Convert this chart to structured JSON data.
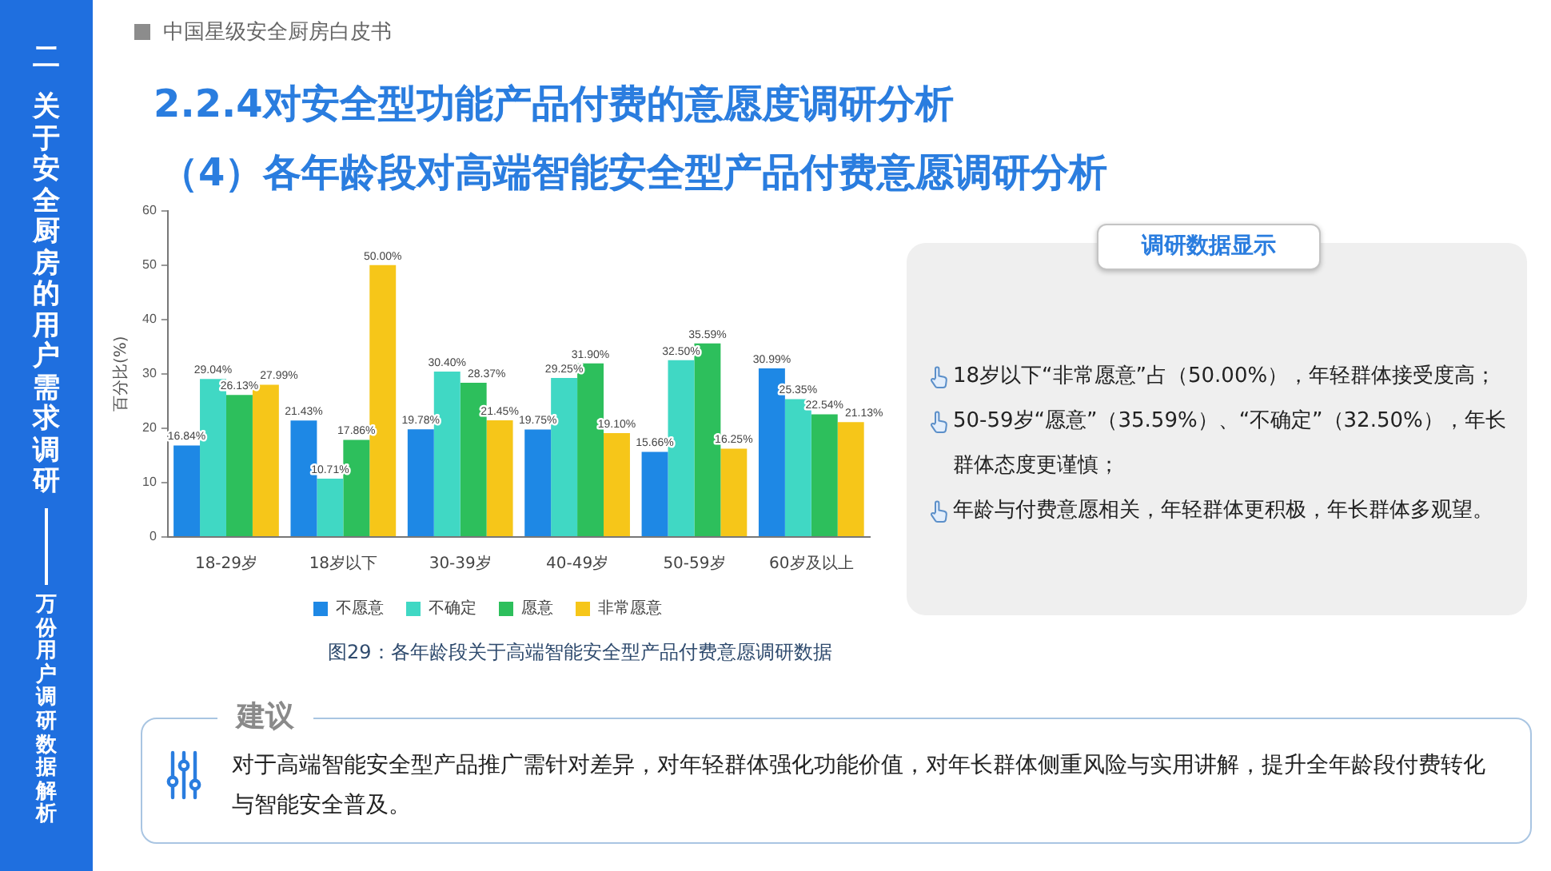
{
  "chart_data": {
    "type": "bar",
    "title": "2.2.4对安全型功能产品付费的意愿度调研分析",
    "subtitle": "（4）各年龄段对高端智能安全型产品付费意愿调研分析",
    "ylabel": "百分比(%)",
    "categories": [
      "18-29岁",
      "18岁以下",
      "30-39岁",
      "40-49岁",
      "50-59岁",
      "60岁及以上"
    ],
    "series": [
      {
        "name": "不愿意",
        "color": "#1e88e5",
        "values": [
          16.84,
          21.43,
          19.78,
          19.75,
          15.66,
          30.99
        ],
        "value_labels": [
          "16.84%",
          "21.43%",
          "19.78%",
          "19.75%",
          "15.66%",
          "30.99%"
        ]
      },
      {
        "name": "不确定",
        "color": "#40d8c4",
        "values": [
          29.04,
          10.71,
          30.4,
          29.25,
          32.5,
          25.35
        ],
        "value_labels": [
          "29.04%",
          "10.71%",
          "30.40%",
          "29.25%",
          "32.50%",
          "25.35%"
        ]
      },
      {
        "name": "愿意",
        "color": "#2dbf5c",
        "values": [
          26.13,
          17.86,
          28.37,
          31.9,
          35.59,
          22.54
        ],
        "value_labels": [
          "26.13%",
          "17.86%",
          "28.37%",
          "31.90%",
          "35.59%",
          "22.54%"
        ]
      },
      {
        "name": "非常愿意",
        "color": "#f6c619",
        "values": [
          27.99,
          50.0,
          21.45,
          19.1,
          16.25,
          21.13
        ],
        "value_labels": [
          "27.99%",
          "50.00%",
          "21.45%",
          "19.10%",
          "16.25%",
          "21.13%"
        ]
      }
    ],
    "ylim": [
      0,
      60
    ],
    "yticks": [
      0,
      10,
      20,
      30,
      40,
      50,
      60
    ],
    "grid": false,
    "legend": "bottom",
    "annotations": [
      "中国星级安全厨房白皮书",
      "二",
      "关于安全厨房的用户需求调研",
      "万份用户调研数据解析",
      "图29：各年龄段关于高端智能安全型产品付费意愿调研数据",
      "调研数据显示",
      "18岁以下“非常愿意”占（50.00%），年轻群体接受度高；",
      "50-59岁“愿意”（35.59%）、“不确定”（32.50%），年长群体态度更谨慎；",
      "年龄与付费意愿相关，年轻群体更积极，年长群体多观望。",
      "建议",
      "对于高端智能安全型产品推广需针对差异，对年轻群体强化功能价值，对年长群体侧重风险与实用讲解，提升全年龄段付费转化与智能安全普及。"
    ]
  }
}
